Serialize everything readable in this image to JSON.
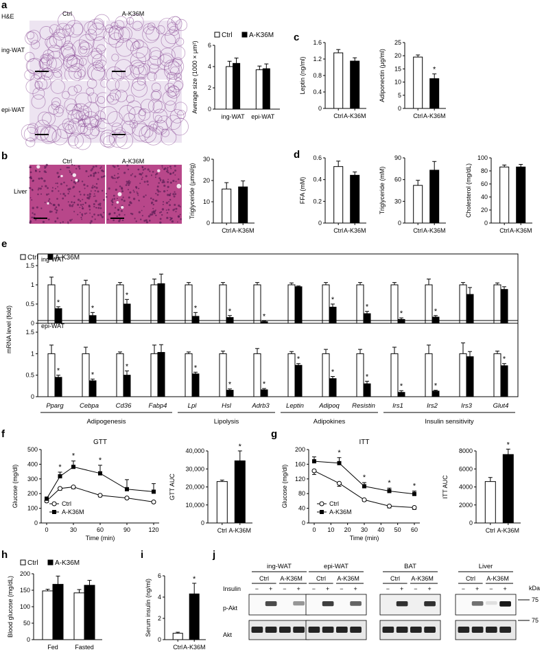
{
  "page": {
    "panel_letters": [
      "a",
      "b",
      "c",
      "d",
      "e",
      "f",
      "g",
      "h",
      "i",
      "j"
    ],
    "histology": {
      "stain_label": "H&E",
      "col_ctrl": "Ctrl",
      "col_mut": "A-K36M",
      "row_ing": "ing-WAT",
      "row_epi": "epi-WAT",
      "row_liver": "Liver",
      "colors": {
        "adipose": "#ede4f1",
        "adipose_edge": "#8c4f98",
        "liver": "#b8478a"
      }
    },
    "legend_ctrl": "Ctrl",
    "legend_mut": "A-K36M",
    "colors": {
      "ctrl_fill": "#ffffff",
      "mut_fill": "#000000",
      "axis": "#000000"
    },
    "western": {
      "tissues": [
        "ing-WAT",
        "epi-WAT",
        "BAT",
        "Liver"
      ],
      "group_ctrl": "Ctrl",
      "group_mut": "A-K36M",
      "insulin_label": "Insulin",
      "insulin_states": [
        "−",
        "+",
        "−",
        "+"
      ],
      "kda_label": "kDa",
      "rows": [
        "p-Akt",
        "Akt"
      ],
      "marker": "75"
    }
  },
  "chart_data": [
    {
      "id": "a",
      "type": "bar",
      "ylabel": "Average size (1000 × μm²)",
      "categories": [
        "ing-WAT",
        "epi-WAT"
      ],
      "ylim": [
        0,
        6
      ],
      "yticks": [
        0,
        2,
        4,
        6
      ],
      "series": [
        {
          "name": "Ctrl",
          "values": [
            4.0,
            3.7
          ],
          "errors": [
            0.5,
            0.35
          ]
        },
        {
          "name": "A-K36M",
          "values": [
            4.3,
            3.8
          ],
          "errors": [
            0.5,
            0.45
          ]
        }
      ],
      "legend": [
        "Ctrl",
        "A-K36M"
      ]
    },
    {
      "id": "c1",
      "type": "bar",
      "ylabel": "Leptin (ng/ml)",
      "categories": [
        "Ctrl",
        "A-K36M"
      ],
      "values": [
        1.35,
        1.15
      ],
      "errors": [
        0.08,
        0.08
      ],
      "ylim": [
        0,
        1.6
      ],
      "yticks": [
        0,
        0.4,
        0.8,
        1.2,
        1.6
      ],
      "ytick_labels": [
        "0",
        "0.4",
        "0.8",
        "1.2",
        "1.6"
      ]
    },
    {
      "id": "c2",
      "type": "bar",
      "ylabel": "Adiponectin (μg/ml)",
      "categories": [
        "Ctrl",
        "A-K36M"
      ],
      "values": [
        19.5,
        11.3
      ],
      "errors": [
        0.8,
        1.8
      ],
      "ylim": [
        0,
        25
      ],
      "yticks": [
        0,
        5,
        10,
        15,
        20,
        25
      ],
      "stars": [
        "",
        "*"
      ]
    },
    {
      "id": "b",
      "type": "bar",
      "ylabel": "Triglyceride (μmol/g)",
      "categories": [
        "Ctrl",
        "A-K36M"
      ],
      "values": [
        16,
        17
      ],
      "errors": [
        3,
        2.8
      ],
      "ylim": [
        0,
        30
      ],
      "yticks": [
        0,
        10,
        20,
        30
      ]
    },
    {
      "id": "d1",
      "type": "bar",
      "ylabel": "FFA (mM)",
      "categories": [
        "Ctrl",
        "A-K36M"
      ],
      "values": [
        0.52,
        0.44
      ],
      "errors": [
        0.05,
        0.03
      ],
      "ylim": [
        0,
        0.6
      ],
      "yticks": [
        0,
        0.2,
        0.4,
        0.6
      ],
      "ytick_labels": [
        "0",
        "0.2",
        "0.4",
        "0.6"
      ]
    },
    {
      "id": "d2",
      "type": "bar",
      "ylabel": "Triglyceride (mM)",
      "categories": [
        "Ctrl",
        "A-K36M"
      ],
      "values": [
        52,
        73
      ],
      "errors": [
        7,
        12
      ],
      "ylim": [
        0,
        90
      ],
      "yticks": [
        0,
        30,
        60,
        90
      ]
    },
    {
      "id": "d3",
      "type": "bar",
      "ylabel": "Cholesterol (mg/dL)",
      "categories": [
        "Ctrl",
        "A-K36M"
      ],
      "values": [
        86,
        86
      ],
      "errors": [
        3,
        4
      ],
      "ylim": [
        0,
        100
      ],
      "yticks": [
        0,
        20,
        40,
        60,
        80,
        100
      ]
    },
    {
      "id": "e",
      "type": "bar",
      "ylabel": "mRNA level (fold)",
      "genes": [
        "Pparg",
        "Cebpa",
        "Cd36",
        "Fabp4",
        "Lpl",
        "Hsl",
        "Adrb3",
        "Leptin",
        "Adipoq",
        "Resistin",
        "Irs1",
        "Irs2",
        "Irs3",
        "Glut4"
      ],
      "groups": [
        {
          "label": "Adipogenesis",
          "genes": 4
        },
        {
          "label": "Lipolysis",
          "genes": 3
        },
        {
          "label": "Adipokines",
          "genes": 3
        },
        {
          "label": "Insulin sensitivity",
          "genes": 4
        }
      ],
      "ylim": [
        0,
        1.5
      ],
      "yticks": [
        0,
        0.5,
        1,
        1.5
      ],
      "ytick_labels": [
        "0",
        "0.5",
        "1",
        "1.5"
      ],
      "legend": [
        "Ctrl",
        "A-K36M"
      ],
      "panels": [
        {
          "name": "ing-WAT",
          "ctrl": [
            1,
            1,
            1,
            1,
            1,
            1,
            1,
            1,
            1,
            1,
            1,
            1,
            1,
            1
          ],
          "ctrl_err": [
            0.2,
            0.12,
            0.06,
            0.15,
            0.06,
            0.06,
            0.06,
            0.05,
            0.06,
            0.06,
            0.06,
            0.15,
            0.06,
            0.05
          ],
          "mut": [
            0.38,
            0.2,
            0.5,
            1.03,
            0.18,
            0.15,
            0.04,
            0.95,
            0.42,
            0.25,
            0.1,
            0.16,
            0.75,
            0.88
          ],
          "mut_err": [
            0.05,
            0.08,
            0.12,
            0.25,
            0.1,
            0.05,
            0.02,
            0.02,
            0.08,
            0.06,
            0.04,
            0.04,
            0.18,
            0.07
          ],
          "stars": [
            "*",
            "*",
            "*",
            "",
            "*",
            "*",
            "*",
            "",
            "*",
            "*",
            "*",
            "*",
            "",
            ""
          ]
        },
        {
          "name": "epi-WAT",
          "ctrl": [
            1,
            1,
            1,
            1,
            1,
            1,
            1,
            1,
            1,
            1,
            1,
            1,
            1,
            1
          ],
          "ctrl_err": [
            0.2,
            0.15,
            0.04,
            0.2,
            0.04,
            0.06,
            0.12,
            0.05,
            0.1,
            0.1,
            0.15,
            0.2,
            0.25,
            0.06
          ],
          "mut": [
            0.45,
            0.37,
            0.5,
            1.03,
            0.53,
            0.15,
            0.16,
            0.73,
            0.42,
            0.3,
            0.1,
            0.13,
            0.93,
            0.72
          ],
          "mut_err": [
            0.05,
            0.04,
            0.1,
            0.18,
            0.04,
            0.03,
            0.03,
            0.04,
            0.05,
            0.06,
            0.04,
            0.02,
            0.12,
            0.05
          ],
          "stars": [
            "*",
            "*",
            "*",
            "",
            "*",
            "*",
            "*",
            "*",
            "*",
            "*",
            "*",
            "*",
            "",
            "*"
          ]
        }
      ]
    },
    {
      "id": "f1",
      "type": "line",
      "title": "GTT",
      "xlabel": "Time (min)",
      "ylabel": "Glucose (mg/dl)",
      "x": [
        0,
        15,
        30,
        60,
        90,
        120
      ],
      "xlim": [
        0,
        120
      ],
      "xticks": [
        0,
        30,
        60,
        90,
        120
      ],
      "ylim": [
        0,
        500
      ],
      "yticks": [
        0,
        100,
        200,
        300,
        400,
        500
      ],
      "series": [
        {
          "name": "Ctrl",
          "marker": "open-circle",
          "values": [
            150,
            235,
            245,
            188,
            170,
            143
          ],
          "errors": [
            10,
            12,
            12,
            10,
            8,
            8
          ]
        },
        {
          "name": "A-K36M",
          "marker": "filled-square",
          "values": [
            165,
            318,
            382,
            338,
            230,
            213
          ],
          "errors": [
            12,
            28,
            40,
            55,
            65,
            55
          ]
        }
      ],
      "stars": [
        {
          "x": 15,
          "label": "*"
        },
        {
          "x": 30,
          "label": "*"
        },
        {
          "x": 60,
          "label": "*"
        }
      ]
    },
    {
      "id": "f2",
      "type": "bar",
      "ylabel": "GTT AUC",
      "categories": [
        "Ctrl",
        "A-K36M"
      ],
      "values": [
        23000,
        34500
      ],
      "errors": [
        800,
        5500
      ],
      "ylim": [
        0,
        40000
      ],
      "yticks": [
        0,
        10000,
        20000,
        30000,
        40000
      ],
      "ytick_labels": [
        "0",
        "10,000",
        "20,000",
        "30,000",
        "40,000"
      ],
      "stars": [
        "",
        "*"
      ]
    },
    {
      "id": "g1",
      "type": "line",
      "title": "ITT",
      "xlabel": "Time (min)",
      "ylabel": "Glucose (mg/dl)",
      "x": [
        0,
        15,
        30,
        45,
        60
      ],
      "xlim": [
        0,
        60
      ],
      "xticks": [
        0,
        10,
        20,
        30,
        40,
        50,
        60
      ],
      "ylim": [
        0,
        200
      ],
      "yticks": [
        0,
        40,
        80,
        120,
        160,
        200
      ],
      "series": [
        {
          "name": "Ctrl",
          "marker": "open-circle",
          "values": [
            142,
            108,
            63,
            46,
            42
          ],
          "errors": [
            10,
            8,
            4,
            5,
            5
          ]
        },
        {
          "name": "A-K36M",
          "marker": "filled-square",
          "values": [
            168,
            163,
            100,
            87,
            79
          ],
          "errors": [
            12,
            15,
            10,
            8,
            8
          ]
        }
      ],
      "stars": [
        {
          "x": 15,
          "label": "*"
        },
        {
          "x": 30,
          "label": "*"
        },
        {
          "x": 45,
          "label": "*"
        },
        {
          "x": 60,
          "label": "*"
        }
      ]
    },
    {
      "id": "g2",
      "type": "bar",
      "ylabel": "ITT AUC",
      "categories": [
        "Ctrl",
        "A-K36M"
      ],
      "values": [
        4600,
        7600
      ],
      "errors": [
        450,
        600
      ],
      "ylim": [
        0,
        8000
      ],
      "yticks": [
        0,
        2000,
        4000,
        6000,
        8000
      ],
      "stars": [
        "",
        "*"
      ]
    },
    {
      "id": "h",
      "type": "bar",
      "ylabel": "Blood glucose (mg/dL)",
      "categories": [
        "Fed",
        "Fasted"
      ],
      "ylim": [
        0,
        200
      ],
      "yticks": [
        0,
        50,
        100,
        150,
        200
      ],
      "series": [
        {
          "name": "Ctrl",
          "values": [
            148,
            142
          ],
          "errors": [
            5,
            10
          ]
        },
        {
          "name": "A-K36M",
          "values": [
            168,
            165
          ],
          "errors": [
            25,
            15
          ]
        }
      ],
      "legend": [
        "Ctrl",
        "A-K36M"
      ]
    },
    {
      "id": "i",
      "type": "bar",
      "ylabel": "Serum insulin (ng/ml)",
      "categories": [
        "Ctrl",
        "A-K36M"
      ],
      "values": [
        0.6,
        4.3
      ],
      "errors": [
        0.1,
        1.0
      ],
      "ylim": [
        0,
        6
      ],
      "yticks": [
        0,
        2,
        4,
        6
      ],
      "stars": [
        "",
        "*"
      ]
    }
  ]
}
